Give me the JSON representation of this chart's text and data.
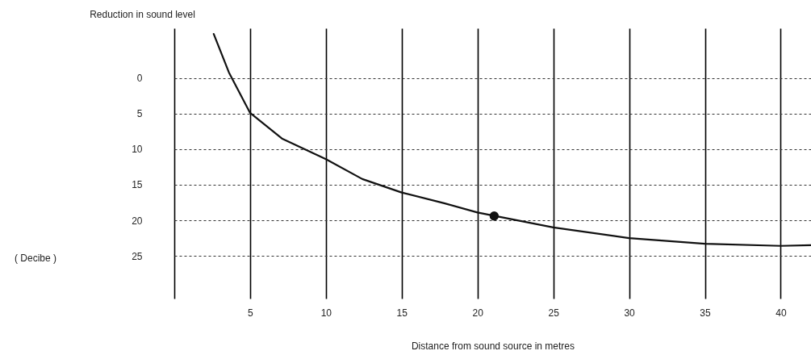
{
  "chart_data": {
    "type": "line",
    "xlabel": "Distance from sound source in metres",
    "ylabel": "Reduction in sound level",
    "annotations": [
      "( Decibe )"
    ],
    "series": [
      {
        "color": "#111111",
        "x": [
          2.6,
          3.6,
          5,
          7.1,
          10,
          12.4,
          15,
          17.8,
          20,
          25,
          30,
          35,
          40,
          42
        ],
        "values": [
          -6.2,
          -0.8,
          4.9,
          8.5,
          11.4,
          14.2,
          16.1,
          17.6,
          18.9,
          21.0,
          22.5,
          23.3,
          23.6,
          23.5
        ]
      },
      {
        "type": "scatter",
        "marker": "circle",
        "color": "#111111",
        "x": [
          21.1
        ],
        "values": [
          19.4
        ]
      }
    ],
    "xlim": [
      0,
      42
    ],
    "xticks": [
      {
        "value": 0,
        "label": null
      },
      5,
      10,
      15,
      20,
      25,
      30,
      35,
      40
    ],
    "ylim": [
      31,
      -7
    ],
    "yticks": [
      0,
      5,
      10,
      15,
      20,
      25
    ],
    "grid": true,
    "line_style": "solid"
  }
}
